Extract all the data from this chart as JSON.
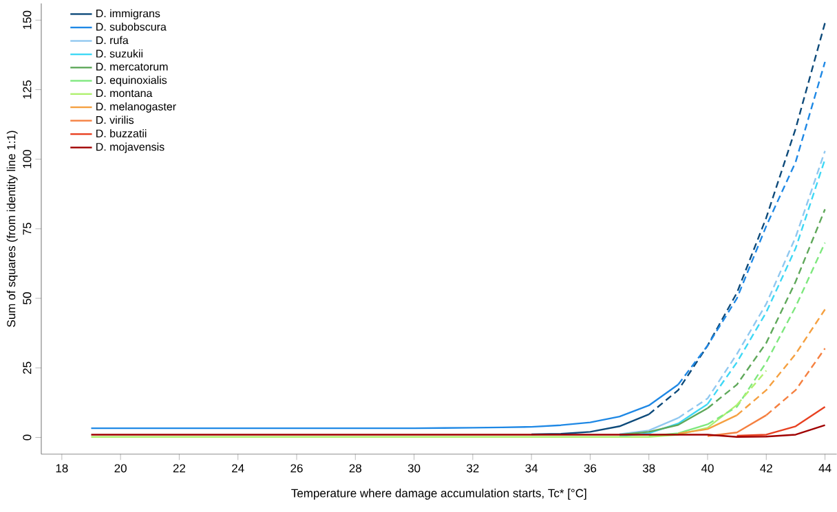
{
  "chart_data": {
    "type": "line",
    "xlabel": "Temperature where damage accumulation starts, Tc* [°C]",
    "ylabel": "Sum of squares (from identity line 1:1)",
    "x": [
      19,
      20,
      21,
      22,
      23,
      24,
      25,
      26,
      27,
      28,
      29,
      30,
      31,
      32,
      33,
      34,
      35,
      36,
      37,
      38,
      39,
      40,
      41,
      42,
      43,
      44
    ],
    "xlim": [
      17.3,
      44.4
    ],
    "xticks": [
      18,
      20,
      22,
      24,
      26,
      28,
      30,
      32,
      34,
      36,
      38,
      40,
      42,
      44
    ],
    "ylim": [
      -6,
      156
    ],
    "yticks": [
      0,
      25,
      50,
      75,
      100,
      125,
      150
    ],
    "grid": false,
    "legend": "top left",
    "marker": "none",
    "series": [
      {
        "name": "D. immigrans",
        "color": "#0d4a7a",
        "line_style": "solid",
        "values": [
          null,
          null,
          null,
          null,
          null,
          null,
          null,
          null,
          null,
          null,
          null,
          null,
          null,
          null,
          null,
          1.1,
          1.3,
          2,
          4,
          8.3,
          null,
          null,
          null,
          null,
          null,
          null
        ]
      },
      {
        "name": "D. subobscura",
        "color": "#1e88e5",
        "line_style": "solid",
        "values": [
          3.3,
          3.3,
          3.3,
          3.3,
          3.3,
          3.3,
          3.3,
          3.3,
          3.3,
          3.3,
          3.3,
          3.3,
          3.4,
          3.5,
          3.6,
          3.8,
          4.4,
          5.4,
          7.5,
          11.5,
          19,
          null,
          null,
          null,
          null,
          null
        ]
      },
      {
        "name": "D. rufa",
        "color": "#90c8f0",
        "line_style": "solid",
        "values": [
          null,
          null,
          null,
          null,
          null,
          null,
          null,
          null,
          null,
          null,
          null,
          null,
          null,
          null,
          null,
          null,
          null,
          null,
          1.2,
          2.5,
          7,
          null,
          null,
          null,
          null,
          null
        ]
      },
      {
        "name": "D. suzukii",
        "color": "#3ed8f5",
        "line_style": "solid",
        "values": [
          null,
          null,
          null,
          null,
          null,
          null,
          null,
          null,
          null,
          null,
          null,
          null,
          null,
          null,
          null,
          null,
          null,
          null,
          0.4,
          1.5,
          5,
          12,
          null,
          null,
          null,
          null
        ]
      },
      {
        "name": "D. mercatorum",
        "color": "#5fa85a",
        "line_style": "solid",
        "values": [
          null,
          null,
          null,
          null,
          null,
          null,
          null,
          null,
          null,
          null,
          null,
          null,
          null,
          null,
          null,
          null,
          null,
          null,
          1,
          2,
          4.5,
          10.5,
          null,
          null,
          null,
          null
        ]
      },
      {
        "name": "D. equinoxialis",
        "color": "#7ee87e",
        "line_style": "solid",
        "values": [
          null,
          null,
          null,
          null,
          null,
          null,
          null,
          null,
          null,
          null,
          null,
          null,
          null,
          null,
          null,
          null,
          null,
          null,
          null,
          0.5,
          1.5,
          4.7,
          null,
          null,
          null,
          null
        ]
      },
      {
        "name": "D. montana",
        "color": "#b0f070",
        "line_style": "solid",
        "values": [
          0.2,
          0.2,
          0.2,
          0.2,
          0.2,
          0.2,
          0.2,
          0.2,
          0.2,
          0.2,
          0.2,
          0.2,
          0.2,
          0.2,
          0.2,
          0.2,
          0.2,
          0.2,
          0.2,
          0.2,
          1,
          3.5,
          11.7,
          null,
          null,
          null
        ]
      },
      {
        "name": "D. melanogaster",
        "color": "#f5a040",
        "line_style": "solid",
        "values": [
          null,
          null,
          null,
          null,
          null,
          null,
          null,
          null,
          null,
          null,
          null,
          null,
          null,
          null,
          null,
          null,
          null,
          null,
          null,
          null,
          1.4,
          3,
          8,
          null,
          null,
          null
        ]
      },
      {
        "name": "D. virilis",
        "color": "#f58040",
        "line_style": "solid",
        "values": [
          null,
          null,
          null,
          null,
          null,
          null,
          null,
          null,
          null,
          null,
          null,
          null,
          null,
          null,
          null,
          null,
          null,
          null,
          null,
          null,
          null,
          0.5,
          1.8,
          8,
          null,
          null
        ]
      },
      {
        "name": "D. buzzatii",
        "color": "#e84020",
        "line_style": "solid",
        "values": [
          null,
          null,
          null,
          null,
          null,
          null,
          null,
          null,
          null,
          null,
          null,
          null,
          null,
          null,
          null,
          null,
          null,
          null,
          null,
          null,
          null,
          null,
          0.6,
          1.0,
          4,
          11
        ]
      },
      {
        "name": "D. mojavensis",
        "color": "#a00000",
        "line_style": "solid",
        "values": [
          1.0,
          1.0,
          1.0,
          1.0,
          1.0,
          1.0,
          1.0,
          1.0,
          1.0,
          1.0,
          1.0,
          1.0,
          1.0,
          1.0,
          1.0,
          1.0,
          1.0,
          1.0,
          1.0,
          1.0,
          1.0,
          1.0,
          0.2,
          0.3,
          1,
          4.4
        ]
      },
      {
        "color": "#0d4a7a",
        "line_style": "dashed",
        "x": [
          38,
          39,
          40,
          41,
          42,
          43,
          44
        ],
        "values": [
          8.3,
          17,
          33,
          52,
          79,
          111,
          149
        ]
      },
      {
        "color": "#1e88e5",
        "line_style": "dashed",
        "x": [
          39,
          40,
          41,
          42,
          43,
          44
        ],
        "values": [
          19,
          33,
          50,
          76,
          99,
          135
        ]
      },
      {
        "color": "#90c8f0",
        "line_style": "dashed",
        "x": [
          39,
          40,
          41,
          42,
          43,
          44
        ],
        "values": [
          7,
          14,
          30,
          48,
          72,
          103
        ]
      },
      {
        "color": "#3ed8f5",
        "line_style": "dashed",
        "x": [
          40,
          41,
          42,
          43,
          44
        ],
        "values": [
          12,
          27,
          45,
          68,
          100
        ]
      },
      {
        "color": "#5fa85a",
        "line_style": "dashed",
        "x": [
          40,
          41,
          42,
          43,
          44
        ],
        "values": [
          10.5,
          19,
          34,
          56,
          82
        ]
      },
      {
        "color": "#7ee87e",
        "line_style": "dashed",
        "x": [
          40,
          41,
          42,
          43,
          44
        ],
        "values": [
          4.7,
          11,
          27,
          47,
          70
        ]
      },
      {
        "color": "#b0f070",
        "line_style": "dashed",
        "x": [
          41,
          42
        ],
        "values": [
          11.7,
          24
        ]
      },
      {
        "color": "#f5a040",
        "line_style": "dashed",
        "x": [
          41,
          42,
          43,
          44
        ],
        "values": [
          8,
          17,
          30,
          46
        ]
      },
      {
        "color": "#f58040",
        "line_style": "dashed",
        "x": [
          42,
          43,
          44
        ],
        "values": [
          8,
          17,
          32
        ]
      }
    ]
  }
}
